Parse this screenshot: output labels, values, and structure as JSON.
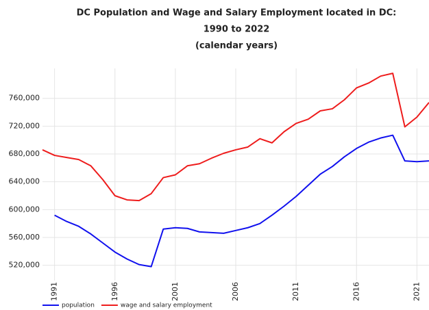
{
  "chart_data": {
    "type": "line",
    "title": [
      "DC Population and Wage and Salary Employment located in DC:",
      "1990 to 2022",
      "(calendar years)"
    ],
    "x": [
      1990,
      1991,
      1992,
      1993,
      1994,
      1995,
      1996,
      1997,
      1998,
      1999,
      2000,
      2001,
      2002,
      2003,
      2004,
      2005,
      2006,
      2007,
      2008,
      2009,
      2010,
      2011,
      2012,
      2013,
      2014,
      2015,
      2016,
      2017,
      2018,
      2019,
      2020,
      2021,
      2022
    ],
    "series": [
      {
        "name": "population",
        "color": "#1010ee",
        "values": [
          null,
          592000,
          583000,
          576000,
          565000,
          552000,
          539000,
          529000,
          521000,
          518000,
          572000,
          574000,
          573000,
          568000,
          567000,
          566000,
          570000,
          574000,
          580000,
          592000,
          605000,
          619000,
          635000,
          651000,
          662000,
          676000,
          688000,
          697000,
          703000,
          707000,
          670000,
          669000,
          670000
        ]
      },
      {
        "name": "wage and salary employment",
        "color": "#ee1c1c",
        "values": [
          686000,
          678000,
          675000,
          672000,
          663000,
          643000,
          620000,
          614000,
          613000,
          623000,
          646000,
          650000,
          663000,
          666000,
          674000,
          681000,
          686000,
          690000,
          702000,
          696000,
          712000,
          724000,
          730000,
          742000,
          745000,
          758000,
          775000,
          782000,
          792000,
          796000,
          719000,
          733000,
          754000
        ]
      }
    ],
    "xlim": [
      1990,
      2022
    ],
    "xticks": [
      1991,
      1996,
      2001,
      2006,
      2011,
      2016,
      2021
    ],
    "ylim": [
      498000,
      803000
    ],
    "yticks": [
      {
        "value": 520000,
        "label": "520,000"
      },
      {
        "value": 560000,
        "label": "560,000"
      },
      {
        "value": 600000,
        "label": "600,000"
      },
      {
        "value": 640000,
        "label": "640,000"
      },
      {
        "value": 680000,
        "label": "680,000"
      },
      {
        "value": 720000,
        "label": "720,000"
      },
      {
        "value": 760000,
        "label": "760,000"
      }
    ],
    "grid": true,
    "legend": "bottom"
  }
}
